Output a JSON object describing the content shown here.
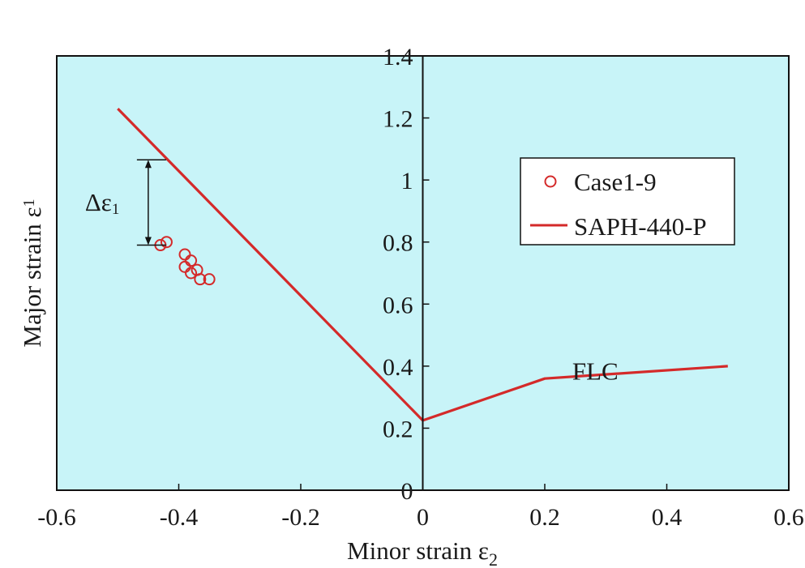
{
  "chart_data": {
    "type": "line",
    "title": "",
    "xlabel": "Minor strain ε",
    "xlabel_sub": "2",
    "ylabel": "Major strain ε",
    "ylabel_sub": "1",
    "xlim": [
      -0.6,
      0.6
    ],
    "ylim": [
      0,
      1.4
    ],
    "xticks": [
      -0.6,
      -0.4,
      -0.2,
      0,
      0.2,
      0.4,
      0.6
    ],
    "xtick_labels": [
      "-0.6",
      "-0.4",
      "-0.2",
      "0",
      "0.2",
      "0.4",
      "0.6"
    ],
    "yticks": [
      0,
      0.2,
      0.4,
      0.6,
      0.8,
      1,
      1.2,
      1.4
    ],
    "ytick_labels": [
      "0",
      "0.2",
      "0.4",
      "0.6",
      "0.8",
      "1",
      "1.2",
      "1.4"
    ],
    "grid": false,
    "legend": "right",
    "plot_background": "#c8f4f8",
    "series": [
      {
        "name": "Case1-9",
        "kind": "scatter",
        "marker": "open-circle",
        "color": "#d42a2a",
        "points": [
          {
            "x": -0.43,
            "y": 0.79
          },
          {
            "x": -0.42,
            "y": 0.8
          },
          {
            "x": -0.39,
            "y": 0.76
          },
          {
            "x": -0.39,
            "y": 0.72
          },
          {
            "x": -0.38,
            "y": 0.74
          },
          {
            "x": -0.38,
            "y": 0.7
          },
          {
            "x": -0.37,
            "y": 0.71
          },
          {
            "x": -0.365,
            "y": 0.68
          },
          {
            "x": -0.35,
            "y": 0.68
          }
        ]
      },
      {
        "name": "SAPH-440-P",
        "kind": "line",
        "color": "#d42a2a",
        "points": [
          {
            "x": -0.5,
            "y": 1.23
          },
          {
            "x": 0,
            "y": 0.225
          },
          {
            "x": 0.2,
            "y": 0.36
          },
          {
            "x": 0.5,
            "y": 0.4
          }
        ]
      }
    ],
    "annotations": {
      "flc_label": "FLC",
      "flc_at": {
        "x": 0.245,
        "y": 0.39
      },
      "delta_symbol": "Δε",
      "delta_sub": "1",
      "delta_bracket": {
        "x": -0.45,
        "y_top": 1.065,
        "y_bottom": 0.79
      }
    }
  }
}
